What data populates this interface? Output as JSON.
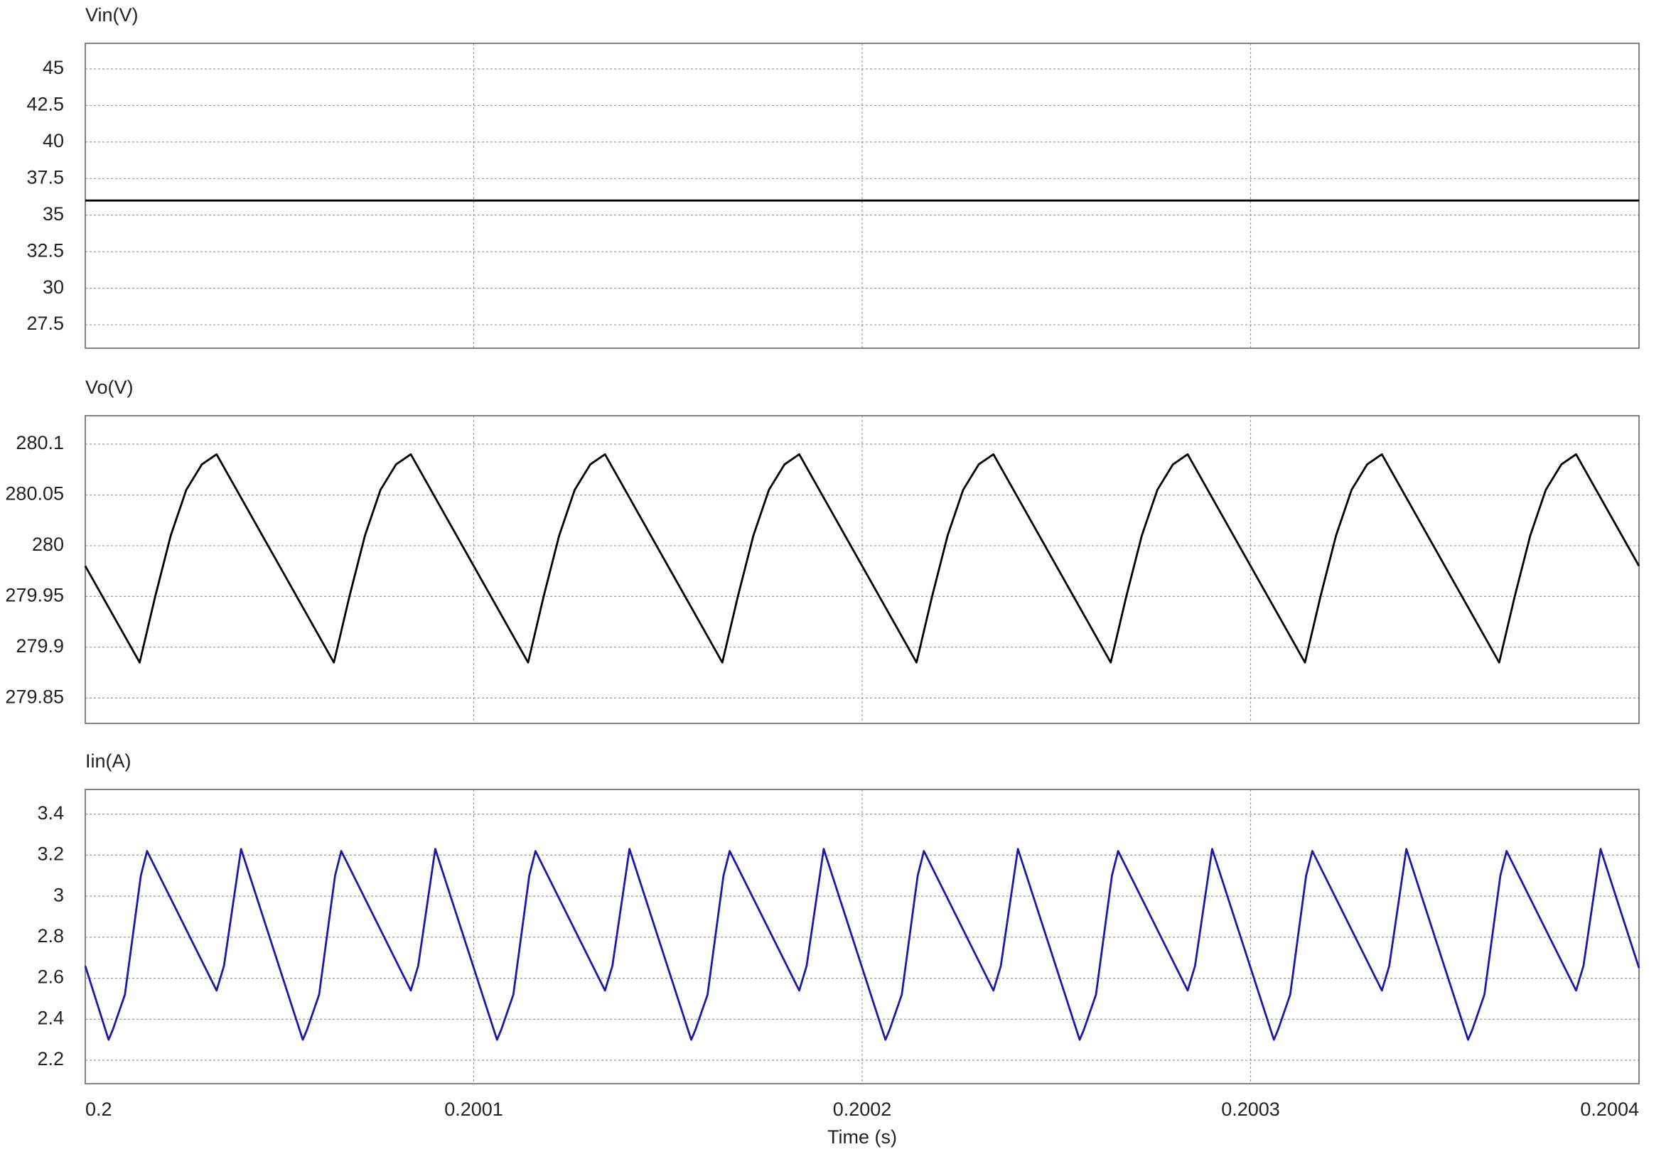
{
  "chart_data": [
    {
      "type": "line",
      "title": "Vin(V)",
      "color": "#000000",
      "grid": true,
      "x": [
        0.2,
        0.2004
      ],
      "values": [
        36,
        36
      ],
      "xlim": [
        0.2,
        0.2004
      ],
      "ylim": [
        25.9,
        46.75
      ],
      "yticks": [
        27.5,
        30,
        32.5,
        35,
        37.5,
        40,
        42.5,
        45
      ]
    },
    {
      "type": "line",
      "title": "Vo(V)",
      "color": "#000000",
      "grid": true,
      "x": [
        0.2,
        0.200014,
        0.200018,
        0.200022,
        0.200026,
        0.20003,
        0.2000338,
        0.200064,
        0.200068,
        0.200072,
        0.200076,
        0.20008,
        0.2000838,
        0.200114,
        0.200118,
        0.200122,
        0.200126,
        0.20013,
        0.2001338,
        0.200164,
        0.200168,
        0.200172,
        0.200176,
        0.20018,
        0.2001838,
        0.200214,
        0.200218,
        0.200222,
        0.200226,
        0.20023,
        0.2002338,
        0.200264,
        0.200268,
        0.200272,
        0.200276,
        0.20028,
        0.2002838,
        0.200314,
        0.200318,
        0.200322,
        0.200326,
        0.20033,
        0.2003338,
        0.200364,
        0.200368,
        0.200372,
        0.200376,
        0.20038,
        0.2003838,
        0.2004
      ],
      "values": [
        279.98,
        279.885,
        279.95,
        280.01,
        280.055,
        280.08,
        280.09,
        279.885,
        279.95,
        280.01,
        280.055,
        280.08,
        280.09,
        279.885,
        279.95,
        280.01,
        280.055,
        280.08,
        280.09,
        279.885,
        279.95,
        280.01,
        280.055,
        280.08,
        280.09,
        279.885,
        279.95,
        280.01,
        280.055,
        280.08,
        280.09,
        279.885,
        279.95,
        280.01,
        280.055,
        280.08,
        280.09,
        279.885,
        279.95,
        280.01,
        280.055,
        280.08,
        280.09,
        279.885,
        279.95,
        280.01,
        280.055,
        280.08,
        280.09,
        279.98
      ],
      "xlim": [
        0.2,
        0.2004
      ],
      "ylim": [
        279.825,
        280.128
      ],
      "yticks": [
        279.85,
        279.9,
        279.95,
        280,
        280.05,
        280.1
      ]
    },
    {
      "type": "line",
      "title": "Iin(A)",
      "color": "#1a1aa8",
      "grid": true,
      "x": [
        0.2,
        0.200006,
        0.2000071,
        0.2000102,
        0.2000143,
        0.2000159,
        0.2000338,
        0.2000357,
        0.2000401,
        0.200056,
        0.2000571,
        0.2000602,
        0.2000643,
        0.2000659,
        0.2000838,
        0.2000857,
        0.2000901,
        0.200106,
        0.2001071,
        0.2001102,
        0.2001143,
        0.2001159,
        0.2001338,
        0.2001357,
        0.2001401,
        0.200156,
        0.2001571,
        0.2001602,
        0.2001643,
        0.2001659,
        0.2001838,
        0.2001857,
        0.2001901,
        0.200206,
        0.2002071,
        0.2002102,
        0.2002143,
        0.2002159,
        0.2002338,
        0.2002357,
        0.2002401,
        0.200256,
        0.2002571,
        0.2002602,
        0.2002643,
        0.2002659,
        0.2002838,
        0.2002857,
        0.2002901,
        0.200306,
        0.2003071,
        0.2003102,
        0.2003143,
        0.2003159,
        0.2003338,
        0.2003357,
        0.2003401,
        0.200356,
        0.2003571,
        0.2003602,
        0.2003643,
        0.2003659,
        0.2003838,
        0.2003857,
        0.2003901,
        0.2004
      ],
      "values": [
        2.66,
        2.3,
        2.35,
        2.52,
        3.1,
        3.22,
        2.54,
        2.66,
        3.23,
        2.3,
        2.35,
        2.52,
        3.1,
        3.22,
        2.54,
        2.66,
        3.23,
        2.3,
        2.35,
        2.52,
        3.1,
        3.22,
        2.54,
        2.66,
        3.23,
        2.3,
        2.35,
        2.52,
        3.1,
        3.22,
        2.54,
        2.66,
        3.23,
        2.3,
        2.35,
        2.52,
        3.1,
        3.22,
        2.54,
        2.66,
        3.23,
        2.3,
        2.35,
        2.52,
        3.1,
        3.22,
        2.54,
        2.66,
        3.23,
        2.3,
        2.35,
        2.52,
        3.1,
        3.22,
        2.54,
        2.66,
        3.23,
        2.3,
        2.35,
        2.52,
        3.1,
        3.22,
        2.54,
        2.66,
        3.23,
        2.65
      ],
      "xlim": [
        0.2,
        0.2004
      ],
      "xticks": [
        0.2,
        0.2001,
        0.2002,
        0.2003,
        0.2004
      ],
      "xlabel": "Time (s)",
      "ylim": [
        2.086,
        3.52
      ],
      "yticks": [
        2.2,
        2.4,
        2.6,
        2.8,
        3,
        3.2,
        3.4
      ]
    }
  ]
}
